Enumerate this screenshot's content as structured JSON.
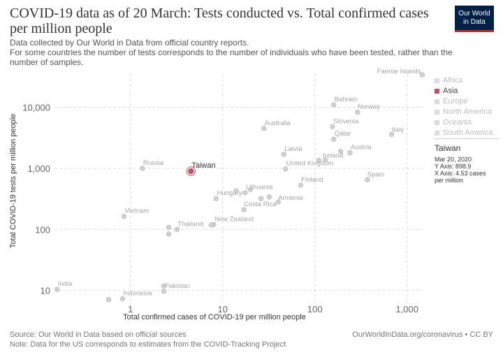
{
  "header": {
    "title": "COVID-19 data as of 20 March: Tests conducted vs. Total confirmed cases per million people",
    "subtitle_lines": [
      "Data collected by Our World in Data from official country reports.",
      "For some countries the number of tests corresponds to the number of individuals who have been tested, rather than the",
      "number of samples."
    ],
    "logo_line1": "Our World",
    "logo_line2": "in Data"
  },
  "legend": {
    "items": [
      {
        "label": "Africa",
        "active": false
      },
      {
        "label": "Asia",
        "active": true
      },
      {
        "label": "Europe",
        "active": false
      },
      {
        "label": "North America",
        "active": false
      },
      {
        "label": "Oceania",
        "active": false
      },
      {
        "label": "South America",
        "active": false
      }
    ]
  },
  "info": {
    "country": "Taiwan",
    "date": "Mar 20, 2020",
    "y_line": "Y Axis: 898.9",
    "x_line": "X Axis: 4.53 cases",
    "x_line2": "per million"
  },
  "footer": {
    "source": "Source: Our World in Data based on official sources",
    "note": "Note: Data for the US corresponds to estimates from the COVID-Tracking Project",
    "url": "OurWorldInData.org/coronavirus • CC BY"
  },
  "colors": {
    "highlight": "#c15065",
    "point": "#cccccc",
    "point_stroke": "#b3b3b3",
    "grid": "#dddddd"
  },
  "chart_data": {
    "type": "scatter",
    "xlabel": "Total confirmed cases of COVID-19 per million people",
    "ylabel": "Total COVID-19 tests per million people",
    "xscale": "log",
    "yscale": "log",
    "xlim": [
      0.15,
      1500
    ],
    "ylim": [
      6.5,
      35000
    ],
    "grid": true,
    "legend_position": "right",
    "xticks": [
      {
        "v": 1,
        "label": "1"
      },
      {
        "v": 10,
        "label": "10"
      },
      {
        "v": 100,
        "label": "100"
      },
      {
        "v": 1000,
        "label": "1,000"
      }
    ],
    "yticks": [
      {
        "v": 10,
        "label": "10"
      },
      {
        "v": 100,
        "label": "100"
      },
      {
        "v": 1000,
        "label": "1,000"
      },
      {
        "v": 10000,
        "label": "10,000"
      }
    ],
    "points": [
      {
        "label": "Faeroe Islands",
        "x": 1460,
        "y": 34000
      },
      {
        "label": "Bahrain",
        "x": 160,
        "y": 11000
      },
      {
        "label": "Norway",
        "x": 290,
        "y": 8300
      },
      {
        "label": "Australia",
        "x": 28,
        "y": 4500
      },
      {
        "label": "Slovenia",
        "x": 155,
        "y": 4800
      },
      {
        "label": "Qatar",
        "x": 160,
        "y": 3000
      },
      {
        "label": "Italy",
        "x": 680,
        "y": 3600
      },
      {
        "label": "Latvia",
        "x": 46,
        "y": 1700
      },
      {
        "label": "Austria",
        "x": 240,
        "y": 1800
      },
      {
        "label": "Ireland",
        "x": 110,
        "y": 1350
      },
      {
        "label": "United Kingdom",
        "x": 48,
        "y": 980
      },
      {
        "label": "Russia",
        "x": 1.35,
        "y": 1000
      },
      {
        "label": "Taiwan",
        "x": 4.53,
        "y": 898.9,
        "highlight": true
      },
      {
        "label": "Spain",
        "x": 370,
        "y": 650
      },
      {
        "label": "Finland",
        "x": 70,
        "y": 530
      },
      {
        "label": "Lithuania",
        "x": 17.5,
        "y": 400
      },
      {
        "label": "Hungary",
        "x": 8.5,
        "y": 320
      },
      {
        "label": "Armenia",
        "x": 40,
        "y": 280
      },
      {
        "label": "Costa Rica",
        "x": 17,
        "y": 210
      },
      {
        "label": "Vietnam",
        "x": 0.85,
        "y": 163
      },
      {
        "label": "Thailand",
        "x": 3.2,
        "y": 100
      },
      {
        "label": "New Zealand",
        "x": 8,
        "y": 120
      },
      {
        "label": "India",
        "x": 0.16,
        "y": 10.4
      },
      {
        "label": "Pakistan",
        "x": 2.3,
        "y": 9.7
      },
      {
        "label": "Indonesia",
        "x": 0.82,
        "y": 7.3
      },
      {
        "label": "",
        "x": 14,
        "y": 430
      },
      {
        "label": "",
        "x": 20,
        "y": 450
      },
      {
        "label": "",
        "x": 26,
        "y": 320
      },
      {
        "label": "",
        "x": 32,
        "y": 340
      },
      {
        "label": "",
        "x": 190,
        "y": 1900
      },
      {
        "label": "",
        "x": 130,
        "y": 1380
      },
      {
        "label": "",
        "x": 2.6,
        "y": 108
      },
      {
        "label": "",
        "x": 2.6,
        "y": 84
      },
      {
        "label": "",
        "x": 7.5,
        "y": 118
      },
      {
        "label": "",
        "x": 2.3,
        "y": 11.8
      },
      {
        "label": "",
        "x": 0.58,
        "y": 7.1
      }
    ]
  }
}
